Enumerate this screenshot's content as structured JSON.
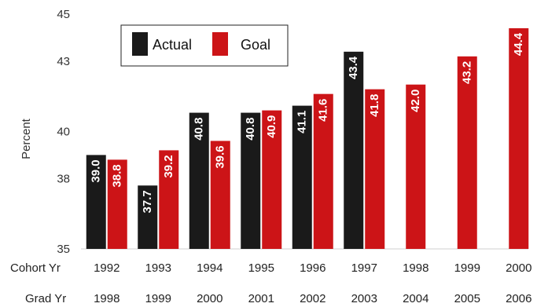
{
  "chart_data": {
    "type": "bar",
    "ylabel": "Percent",
    "ylim": [
      35,
      45
    ],
    "yticks": [
      35,
      38,
      40,
      43,
      45
    ],
    "row_labels": {
      "cohort": "Cohort Yr",
      "grad": "Grad Yr"
    },
    "cohort_years": [
      "1992",
      "1993",
      "1994",
      "1995",
      "1996",
      "1997",
      "1998",
      "1999",
      "2000"
    ],
    "grad_years": [
      "1998",
      "1999",
      "2000",
      "2001",
      "2002",
      "2003",
      "2004",
      "2005",
      "2006"
    ],
    "series": [
      {
        "name": "Actual",
        "color": "#1a1a1a",
        "values": [
          39.0,
          37.7,
          40.8,
          40.8,
          41.1,
          43.4,
          null,
          null,
          null
        ]
      },
      {
        "name": "Goal",
        "color": "#cc1417",
        "values": [
          38.8,
          39.2,
          39.6,
          40.9,
          41.6,
          41.8,
          42.0,
          43.2,
          44.4
        ]
      }
    ],
    "legend_position": "top-left",
    "grid": false
  }
}
